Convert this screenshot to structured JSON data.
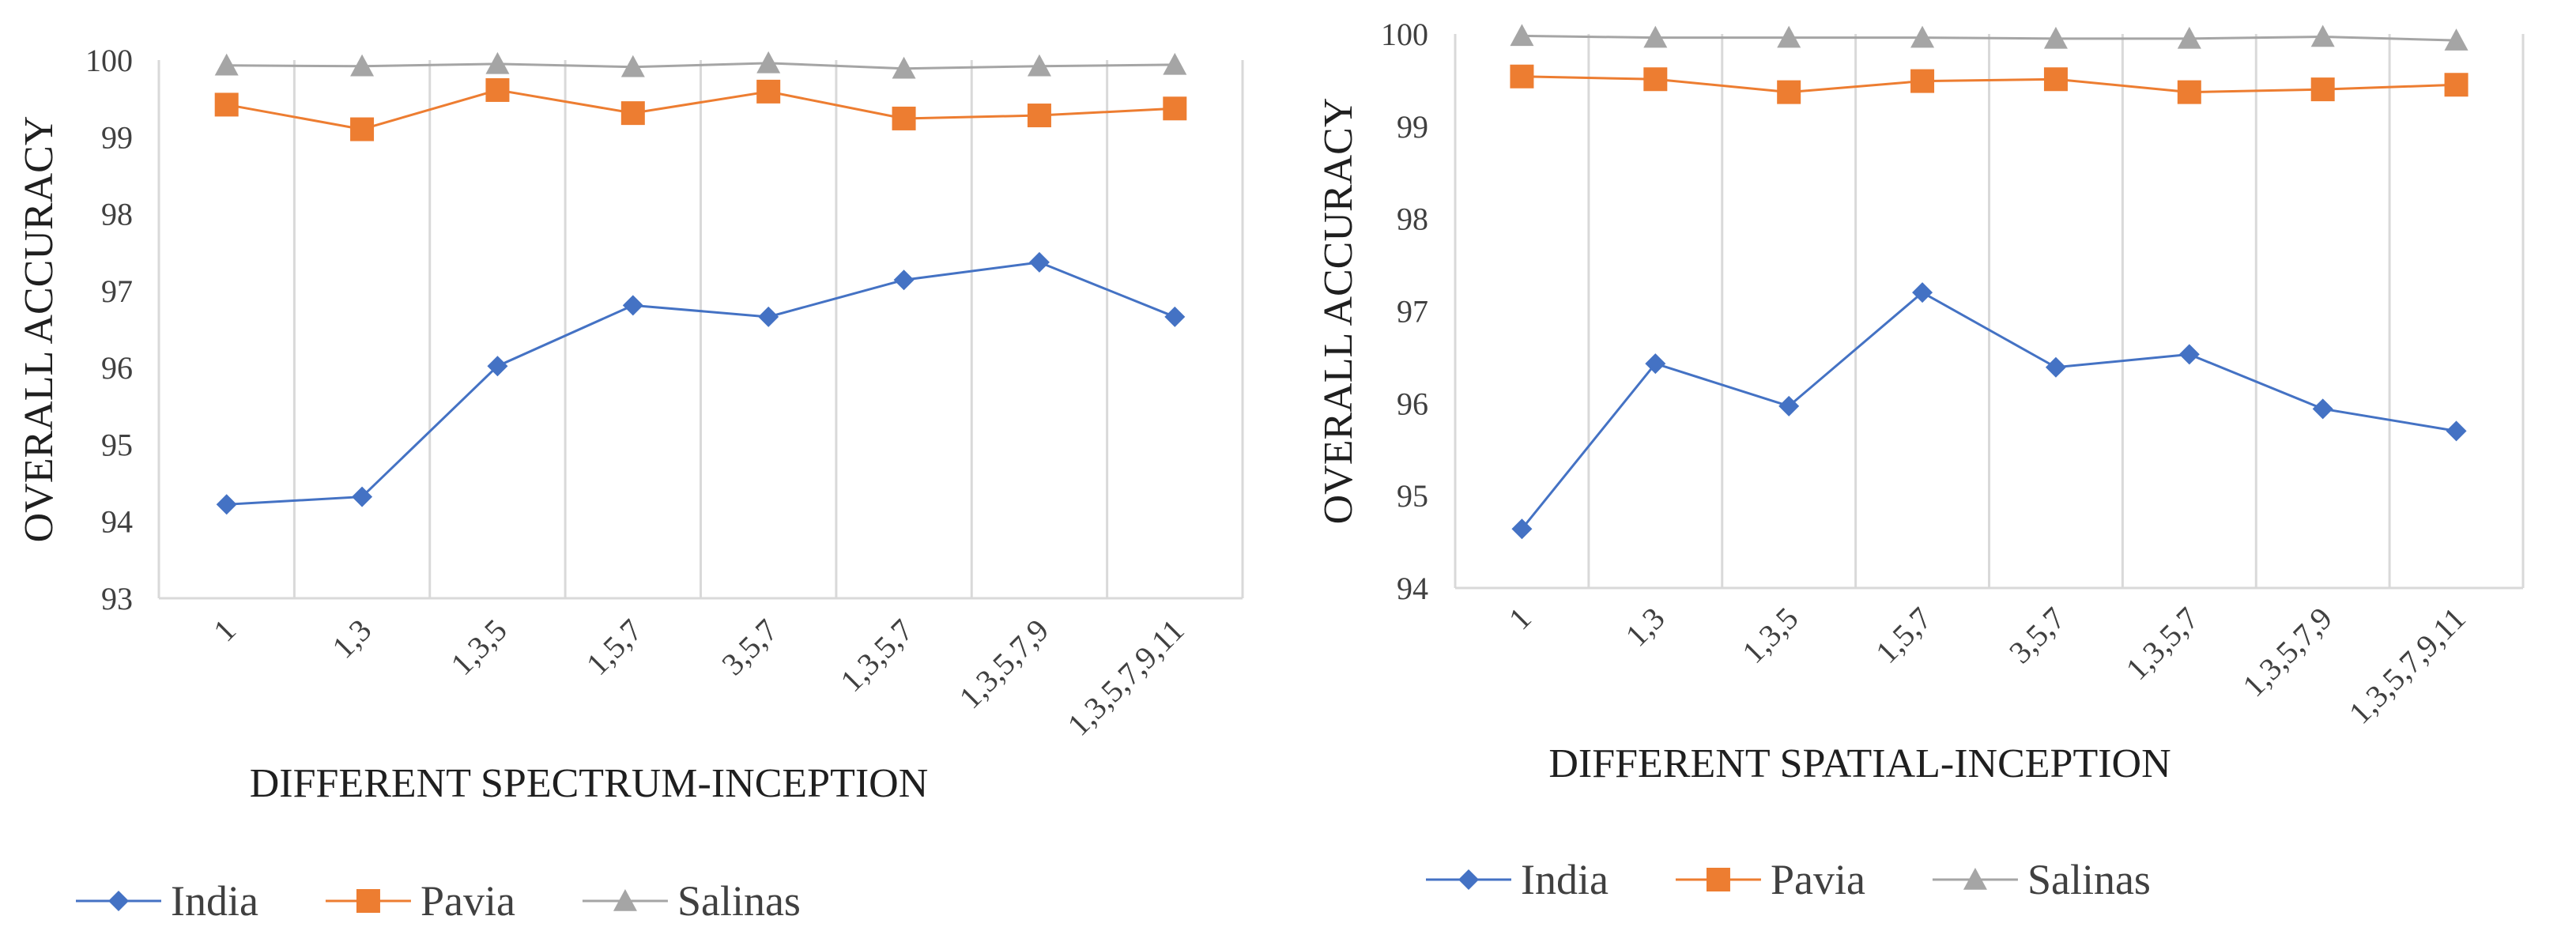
{
  "chart_data": [
    {
      "type": "line",
      "title": "",
      "xlabel": "DIFFERENT SPECTRUM-INCEPTION",
      "ylabel": "OVERALL ACCURACY",
      "categories": [
        "1",
        "1,3",
        "1,3,5",
        "1,5,7",
        "3,5,7",
        "1,3,5,7",
        "1,3,5,7,9",
        "1,3,5,7,9,11"
      ],
      "ylim": [
        93,
        100
      ],
      "yticks": [
        "93",
        "94",
        "95",
        "96",
        "97",
        "98",
        "99",
        "100"
      ],
      "grid": "vertical",
      "legend": "bottom",
      "series": [
        {
          "name": "India",
          "color": "#4472C4",
          "marker": "diamond",
          "values": [
            94.22,
            94.32,
            96.02,
            96.81,
            96.66,
            97.14,
            97.37,
            96.66
          ]
        },
        {
          "name": "Pavia",
          "color": "#ED7D31",
          "marker": "square",
          "values": [
            99.42,
            99.1,
            99.61,
            99.31,
            99.59,
            99.24,
            99.28,
            99.37
          ]
        },
        {
          "name": "Salinas",
          "color": "#A5A5A5",
          "marker": "triangle",
          "values": [
            99.93,
            99.92,
            99.95,
            99.91,
            99.96,
            99.89,
            99.92,
            99.94
          ]
        }
      ]
    },
    {
      "type": "line",
      "title": "",
      "xlabel": "DIFFERENT SPATIAL-INCEPTION",
      "ylabel": "OVERALL ACCURACY",
      "categories": [
        "1",
        "1,3",
        "1,3,5",
        "1,5,7",
        "3,5,7",
        "1,3,5,7",
        "1,3,5,7,9",
        "1,3,5,7,9,11"
      ],
      "ylim": [
        94,
        100
      ],
      "yticks": [
        "94",
        "95",
        "96",
        "97",
        "98",
        "99",
        "100"
      ],
      "grid": "vertical",
      "legend": "bottom",
      "series": [
        {
          "name": "India",
          "color": "#4472C4",
          "marker": "diamond",
          "values": [
            94.64,
            96.43,
            95.97,
            97.2,
            96.39,
            96.53,
            95.94,
            95.7
          ]
        },
        {
          "name": "Pavia",
          "color": "#ED7D31",
          "marker": "square",
          "values": [
            99.54,
            99.51,
            99.37,
            99.49,
            99.51,
            99.37,
            99.4,
            99.45
          ]
        },
        {
          "name": "Salinas",
          "color": "#A5A5A5",
          "marker": "triangle",
          "values": [
            99.98,
            99.96,
            99.96,
            99.96,
            99.95,
            99.95,
            99.97,
            99.93
          ]
        }
      ]
    }
  ]
}
